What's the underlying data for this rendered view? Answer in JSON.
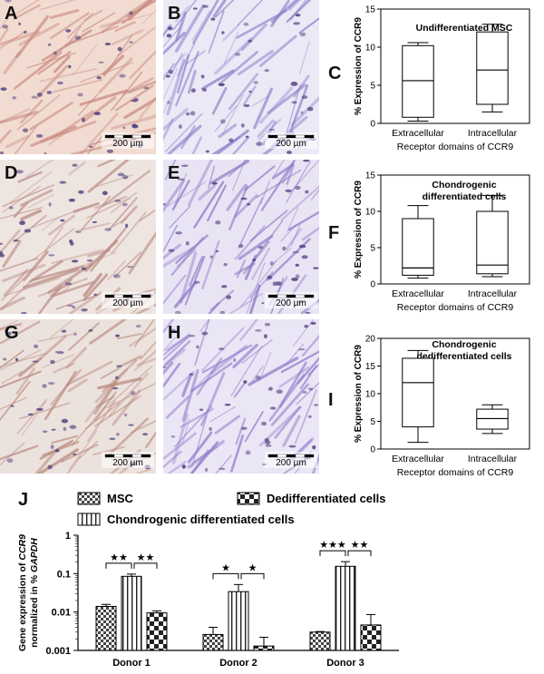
{
  "panels": {
    "A": {
      "letter": "A",
      "scale": "200 µm",
      "stain": "#c98a80",
      "bg": "#f2dcd2"
    },
    "B": {
      "letter": "B",
      "scale": "200 µm",
      "stain": "#8a7fc9",
      "bg": "#ece8f6"
    },
    "D": {
      "letter": "D",
      "scale": "200 µm",
      "stain": "#b98a82",
      "bg": "#eee4e0"
    },
    "E": {
      "letter": "E",
      "scale": "200 µm",
      "stain": "#8b78c6",
      "bg": "#e9e4f4"
    },
    "G": {
      "letter": "G",
      "scale": "200 µm",
      "stain": "#b98a7e",
      "bg": "#ece2dd"
    },
    "H": {
      "letter": "H",
      "scale": "200 µm",
      "stain": "#8f7ccb",
      "bg": "#ebe6f5"
    }
  },
  "chart_data": [
    {
      "type": "boxplot",
      "panel": "C",
      "title": "Undifferentiated MSC",
      "ylabel": "% Expression of CCR9",
      "xlabel": "Receptor domains of CCR9",
      "categories": [
        "Extracellular",
        "Intracellular"
      ],
      "ylim": [
        0,
        15
      ],
      "yticks": [
        0,
        5,
        10,
        15
      ],
      "boxes": [
        {
          "min": 0.3,
          "q1": 0.8,
          "median": 5.6,
          "q3": 10.2,
          "max": 10.6
        },
        {
          "min": 1.5,
          "q1": 2.5,
          "median": 7.0,
          "q3": 12.0,
          "max": 13.0
        }
      ]
    },
    {
      "type": "boxplot",
      "panel": "F",
      "title": "Chondrogenic\ndifferentiated cells",
      "ylabel": "% Expression of CCR9",
      "xlabel": "Receptor domains of CCR9",
      "categories": [
        "Extracellular",
        "Intracellular"
      ],
      "ylim": [
        0,
        15
      ],
      "yticks": [
        0,
        5,
        10,
        15
      ],
      "boxes": [
        {
          "min": 0.8,
          "q1": 1.2,
          "median": 2.2,
          "q3": 9.0,
          "max": 10.8
        },
        {
          "min": 1.0,
          "q1": 1.4,
          "median": 2.6,
          "q3": 10.0,
          "max": 12.2
        }
      ]
    },
    {
      "type": "boxplot",
      "panel": "I",
      "title": "Chondrogenic\ndedifferentiated cells",
      "ylabel": "% Expression of CCR9",
      "xlabel": "Receptor domains of CCR9",
      "categories": [
        "Extracellular",
        "Intracellular"
      ],
      "ylim": [
        0,
        20
      ],
      "yticks": [
        0,
        5,
        10,
        15,
        20
      ],
      "boxes": [
        {
          "min": 1.2,
          "q1": 4.0,
          "median": 12.0,
          "q3": 16.4,
          "max": 17.8
        },
        {
          "min": 2.8,
          "q1": 3.6,
          "median": 5.5,
          "q3": 7.2,
          "max": 8.0
        }
      ]
    },
    {
      "type": "bar",
      "panel": "J",
      "ylabel_parts": [
        "Gene expression of ",
        "CCR9",
        "normalized in % ",
        "GAPDH"
      ],
      "yscale": "log",
      "ylim": [
        0.001,
        1
      ],
      "yticks": [
        0.001,
        0.01,
        0.1,
        1
      ],
      "ytick_labels": [
        "0.001",
        "0.01",
        "0.1",
        "1"
      ],
      "categories": [
        "Donor 1",
        "Donor 2",
        "Donor 3"
      ],
      "series": [
        {
          "name": "MSC",
          "values": [
            0.014,
            0.0026,
            0.003
          ],
          "errors": [
            0.0018,
            0.0014,
            0.0001
          ],
          "pattern": "checker"
        },
        {
          "name": "Chondrogenic differentiated cells",
          "values": [
            0.085,
            0.034,
            0.155
          ],
          "errors": [
            0.012,
            0.018,
            0.05
          ],
          "pattern": "vstripes"
        },
        {
          "name": "Dedifferentiated cells",
          "values": [
            0.0095,
            0.0013,
            0.0046
          ],
          "errors": [
            0.0012,
            0.0009,
            0.004
          ],
          "pattern": "bigchecker"
        }
      ],
      "significance": [
        {
          "group": 0,
          "left": "★★",
          "right": "★★"
        },
        {
          "group": 1,
          "left": "★",
          "right": "★"
        },
        {
          "group": 2,
          "left": "★★★",
          "right": "★★"
        }
      ]
    }
  ]
}
